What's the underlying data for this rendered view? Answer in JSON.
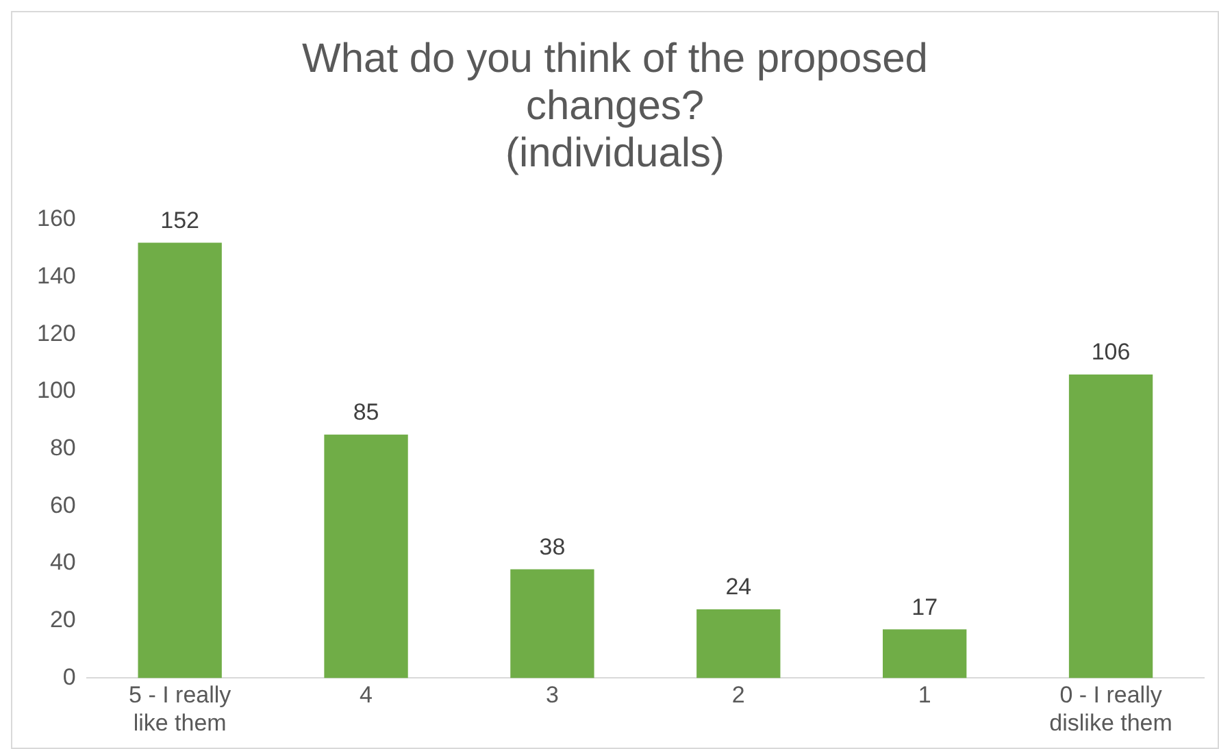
{
  "chart_data": {
    "type": "bar",
    "title": "What do you think of the proposed changes?\n(individuals)",
    "categories": [
      "5 - I really like them",
      "4",
      "3",
      "2",
      "1",
      "0 - I really dislike them"
    ],
    "values": [
      152,
      85,
      38,
      24,
      17,
      106
    ],
    "color": "#70ad47",
    "ylim": [
      0,
      160
    ],
    "yticks": [
      0,
      20,
      40,
      60,
      80,
      100,
      120,
      140,
      160
    ],
    "grid": false,
    "legend": false,
    "data_labels": true
  }
}
